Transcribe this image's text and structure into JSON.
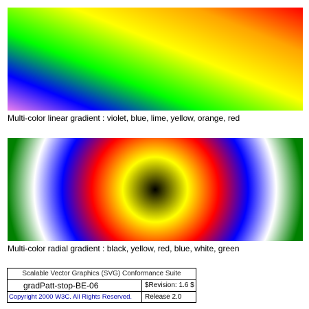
{
  "linear_section": {
    "caption": "Multi-color linear gradient : violet, blue, lime, yellow, orange, red",
    "stop_colors": [
      "#ee82ee",
      "#0000ff",
      "#00ff00",
      "#ffff00",
      "#ffa500",
      "#ff0000"
    ]
  },
  "radial_section": {
    "caption": "Multi-color radial gradient : black, yellow, red, blue, white, green",
    "stop_colors": [
      "#000000",
      "#ffff00",
      "#ff0000",
      "#0000ff",
      "#ffffff",
      "#008000"
    ]
  },
  "footer": {
    "suite_title": "Scalable Vector Graphics (SVG) Conformance Suite",
    "test_name": "gradPatt-stop-BE-06",
    "revision": "$Revision: 1.6 $",
    "copyright": "Copyright 2000 W3C. All Rights Reserved.",
    "release": "Release 2.0"
  }
}
